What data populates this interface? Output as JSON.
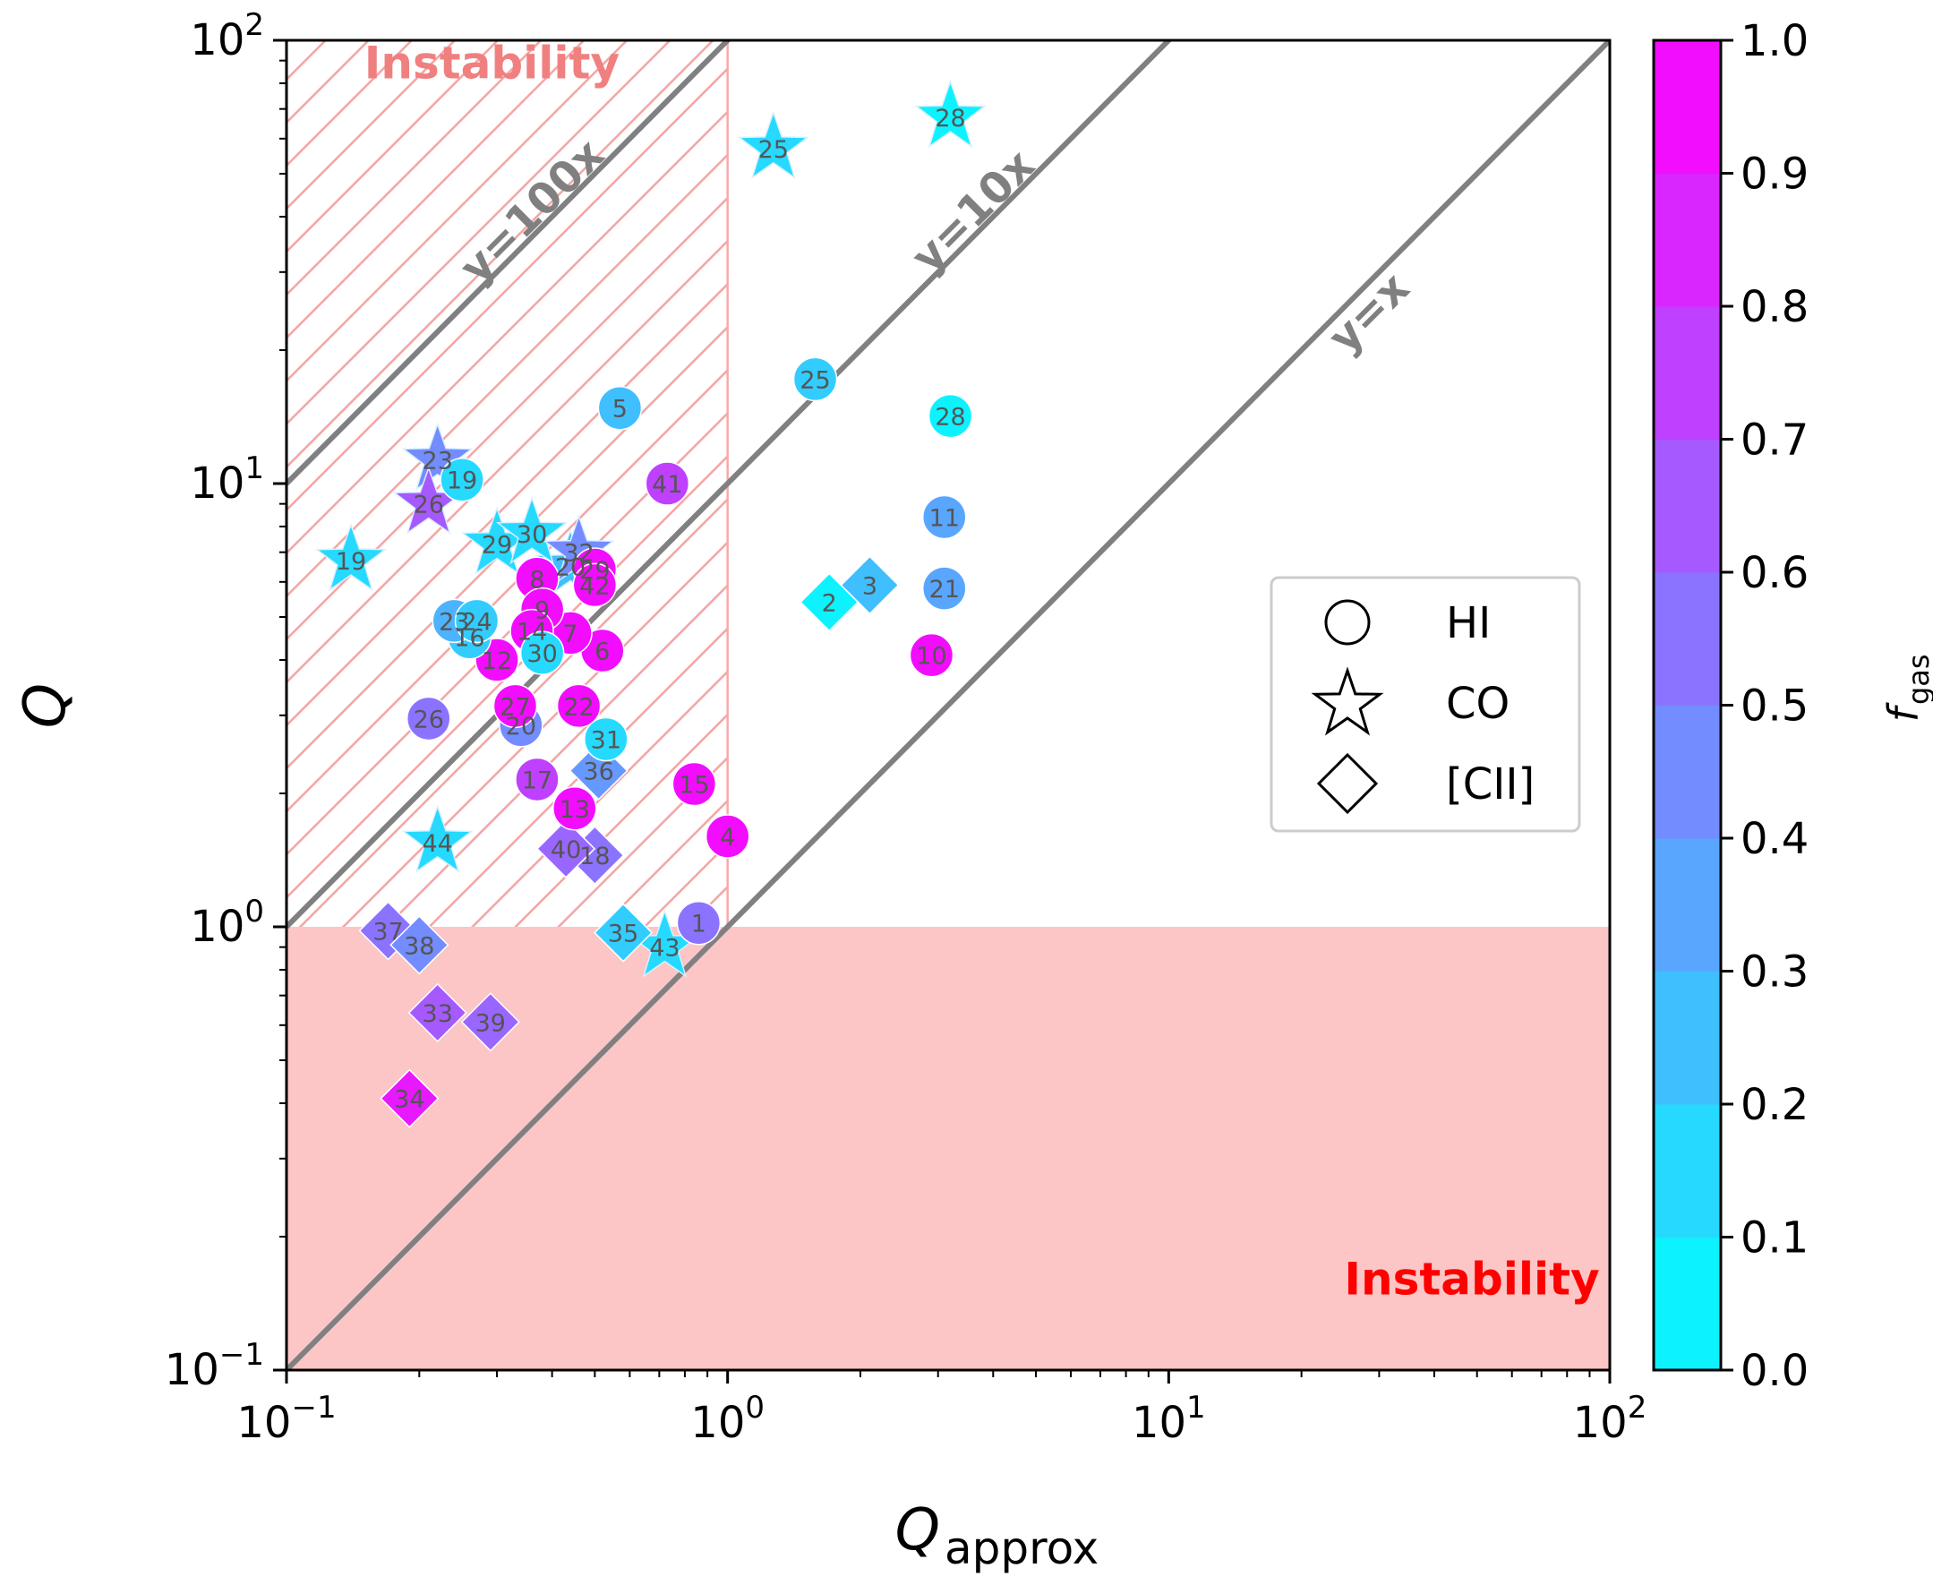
{
  "chart_data": {
    "type": "scatter",
    "xscale": "log",
    "yscale": "log",
    "xlim": [
      0.1,
      100
    ],
    "ylim": [
      0.1,
      100
    ],
    "xlabel": "Q",
    "xlabel_sub": "approx",
    "ylabel": "Q",
    "x_ticks": [
      {
        "value": 0.1,
        "base": "10",
        "exp": "−1"
      },
      {
        "value": 1,
        "base": "10",
        "exp": "0"
      },
      {
        "value": 10,
        "base": "10",
        "exp": "1"
      },
      {
        "value": 100,
        "base": "10",
        "exp": "2"
      }
    ],
    "y_ticks": [
      {
        "value": 0.1,
        "base": "10",
        "exp": "−1"
      },
      {
        "value": 1,
        "base": "10",
        "exp": "0"
      },
      {
        "value": 10,
        "base": "10",
        "exp": "1"
      },
      {
        "value": 100,
        "base": "10",
        "exp": "2"
      }
    ],
    "reference_lines": [
      {
        "label": "y=100x",
        "factor": 100,
        "label_at": [
          0.38,
          39
        ]
      },
      {
        "label": "y=10x",
        "factor": 10,
        "label_at": [
          3.8,
          39
        ]
      },
      {
        "label": "y=x",
        "factor": 1,
        "label_at": [
          30,
          23
        ]
      }
    ],
    "regions": [
      {
        "label": "Instability",
        "type": "hatched",
        "x_range": [
          0.1,
          1
        ],
        "y_range": [
          0.1,
          100
        ],
        "label_at": [
          0.15,
          82
        ],
        "label_color": "#f08080"
      },
      {
        "label": "Instability",
        "type": "filled",
        "x_range": [
          0.1,
          100
        ],
        "y_range": [
          0.1,
          1
        ],
        "label_at": [
          25,
          0.148
        ],
        "label_color": "#ff0000"
      }
    ],
    "legend": {
      "position": "center-right",
      "entries": [
        {
          "marker": "circle",
          "label": "HI"
        },
        {
          "marker": "star",
          "label": "CO"
        },
        {
          "marker": "diamond",
          "label": "[CII]"
        }
      ]
    },
    "colorbar": {
      "label": "f",
      "label_sub": "gas",
      "range": [
        0,
        1
      ],
      "levels": 10,
      "colormap": "cool",
      "ticks": [
        "0.0",
        "0.1",
        "0.2",
        "0.3",
        "0.4",
        "0.5",
        "0.6",
        "0.7",
        "0.8",
        "0.9",
        "1.0"
      ]
    },
    "series": [
      {
        "name": "HI",
        "marker": "circle",
        "points": [
          {
            "id": "1",
            "x": 0.86,
            "y": 1.02,
            "fgas": 0.55
          },
          {
            "id": "4",
            "x": 1.0,
            "y": 1.6,
            "fgas": 0.95
          },
          {
            "id": "5",
            "x": 0.57,
            "y": 14.8,
            "fgas": 0.25
          },
          {
            "id": "6",
            "x": 0.52,
            "y": 4.2,
            "fgas": 0.95
          },
          {
            "id": "7",
            "x": 0.44,
            "y": 4.6,
            "fgas": 0.95
          },
          {
            "id": "8",
            "x": 0.37,
            "y": 6.1,
            "fgas": 0.95
          },
          {
            "id": "9",
            "x": 0.38,
            "y": 5.2,
            "fgas": 0.95
          },
          {
            "id": "10",
            "x": 2.9,
            "y": 4.1,
            "fgas": 0.95
          },
          {
            "id": "11",
            "x": 3.1,
            "y": 8.4,
            "fgas": 0.35
          },
          {
            "id": "12",
            "x": 0.3,
            "y": 4.0,
            "fgas": 0.95
          },
          {
            "id": "13",
            "x": 0.45,
            "y": 1.85,
            "fgas": 0.95
          },
          {
            "id": "14",
            "x": 0.36,
            "y": 4.65,
            "fgas": 0.95
          },
          {
            "id": "15",
            "x": 0.84,
            "y": 2.1,
            "fgas": 0.95
          },
          {
            "id": "16",
            "x": 0.26,
            "y": 4.5,
            "fgas": 0.2
          },
          {
            "id": "17",
            "x": 0.37,
            "y": 2.15,
            "fgas": 0.75
          },
          {
            "id": "19",
            "x": 0.25,
            "y": 10.2,
            "fgas": 0.15
          },
          {
            "id": "20",
            "x": 0.34,
            "y": 2.85,
            "fgas": 0.45
          },
          {
            "id": "21",
            "x": 3.1,
            "y": 5.8,
            "fgas": 0.35
          },
          {
            "id": "22",
            "x": 0.46,
            "y": 3.15,
            "fgas": 0.95
          },
          {
            "id": "23",
            "x": 0.24,
            "y": 4.9,
            "fgas": 0.3
          },
          {
            "id": "24",
            "x": 0.27,
            "y": 4.9,
            "fgas": 0.2
          },
          {
            "id": "25",
            "x": 1.58,
            "y": 17.2,
            "fgas": 0.2
          },
          {
            "id": "26",
            "x": 0.21,
            "y": 2.95,
            "fgas": 0.55
          },
          {
            "id": "27",
            "x": 0.33,
            "y": 3.15,
            "fgas": 0.95
          },
          {
            "id": "28",
            "x": 3.2,
            "y": 14.2,
            "fgas": 0.05
          },
          {
            "id": "29",
            "x": 0.5,
            "y": 6.4,
            "fgas": 0.95
          },
          {
            "id": "30",
            "x": 0.38,
            "y": 4.15,
            "fgas": 0.15
          },
          {
            "id": "31",
            "x": 0.53,
            "y": 2.65,
            "fgas": 0.15
          },
          {
            "id": "41",
            "x": 0.73,
            "y": 10.0,
            "fgas": 0.75
          },
          {
            "id": "42",
            "x": 0.5,
            "y": 5.9,
            "fgas": 0.95
          }
        ]
      },
      {
        "name": "CO",
        "marker": "star",
        "points": [
          {
            "id": "19",
            "x": 0.14,
            "y": 6.7,
            "fgas": 0.15
          },
          {
            "id": "20",
            "x": 0.44,
            "y": 6.5,
            "fgas": 0.25
          },
          {
            "id": "23",
            "x": 0.22,
            "y": 11.3,
            "fgas": 0.45
          },
          {
            "id": "25",
            "x": 1.27,
            "y": 57,
            "fgas": 0.15
          },
          {
            "id": "26",
            "x": 0.21,
            "y": 9.0,
            "fgas": 0.65
          },
          {
            "id": "28",
            "x": 3.2,
            "y": 67,
            "fgas": 0.05
          },
          {
            "id": "29",
            "x": 0.3,
            "y": 7.3,
            "fgas": 0.15
          },
          {
            "id": "30",
            "x": 0.36,
            "y": 7.7,
            "fgas": 0.15
          },
          {
            "id": "32",
            "x": 0.46,
            "y": 7.0,
            "fgas": 0.45
          },
          {
            "id": "43",
            "x": 0.72,
            "y": 0.9,
            "fgas": 0.15
          },
          {
            "id": "44",
            "x": 0.22,
            "y": 1.55,
            "fgas": 0.15
          }
        ]
      },
      {
        "name": "[CII]",
        "marker": "diamond",
        "points": [
          {
            "id": "2",
            "x": 1.7,
            "y": 5.4,
            "fgas": 0.05
          },
          {
            "id": "3",
            "x": 2.1,
            "y": 5.9,
            "fgas": 0.25
          },
          {
            "id": "18",
            "x": 0.5,
            "y": 1.45,
            "fgas": 0.55
          },
          {
            "id": "33",
            "x": 0.22,
            "y": 0.64,
            "fgas": 0.65
          },
          {
            "id": "34",
            "x": 0.19,
            "y": 0.41,
            "fgas": 0.9
          },
          {
            "id": "35",
            "x": 0.58,
            "y": 0.97,
            "fgas": 0.2
          },
          {
            "id": "36",
            "x": 0.51,
            "y": 2.25,
            "fgas": 0.4
          },
          {
            "id": "37",
            "x": 0.17,
            "y": 0.98,
            "fgas": 0.55
          },
          {
            "id": "38",
            "x": 0.2,
            "y": 0.91,
            "fgas": 0.45
          },
          {
            "id": "39",
            "x": 0.29,
            "y": 0.61,
            "fgas": 0.6
          },
          {
            "id": "40",
            "x": 0.43,
            "y": 1.5,
            "fgas": 0.6
          }
        ]
      }
    ]
  }
}
